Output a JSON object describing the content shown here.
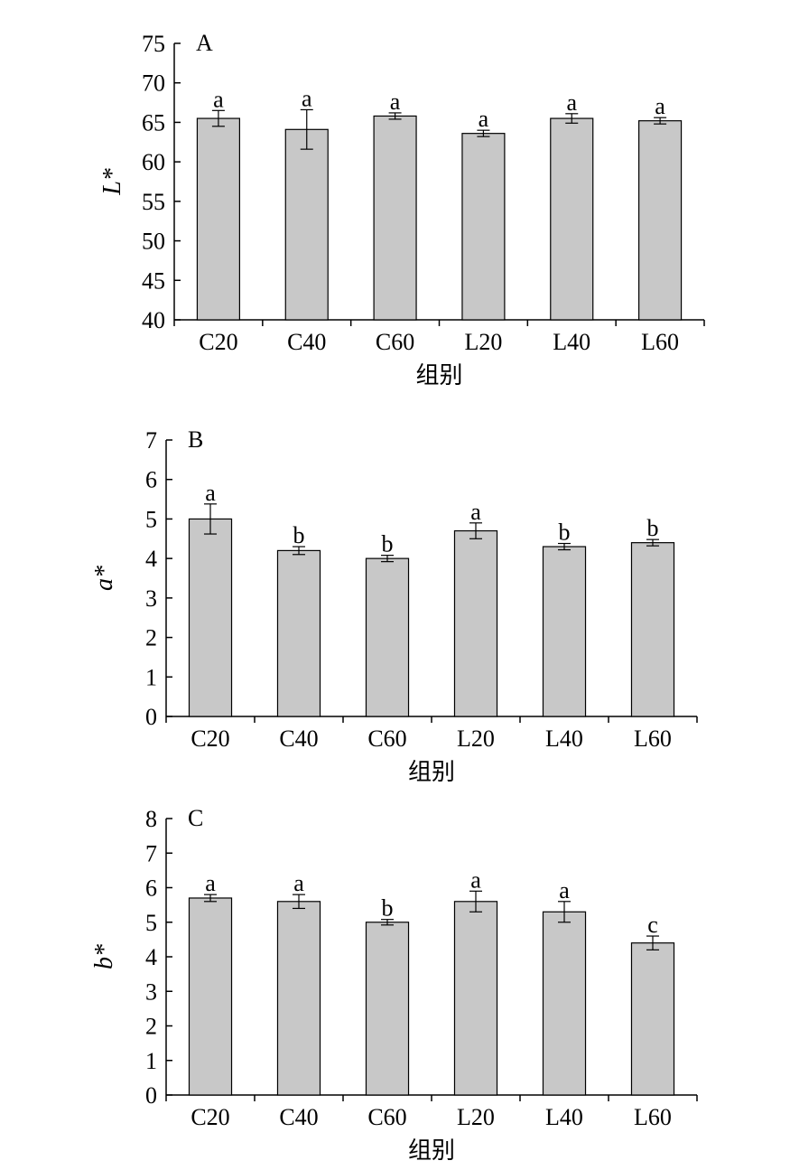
{
  "chart_data": [
    {
      "panel_label": "A",
      "type": "bar",
      "categories": [
        "C20",
        "C40",
        "C60",
        "L20",
        "L40",
        "L60"
      ],
      "values": [
        65.5,
        64.1,
        65.8,
        63.6,
        65.5,
        65.2
      ],
      "errors": [
        1.0,
        2.5,
        0.4,
        0.4,
        0.6,
        0.4
      ],
      "significance": [
        "a",
        "a",
        "a",
        "a",
        "a",
        "a"
      ],
      "ylabel": "L*",
      "xlabel": "组别",
      "ylim": [
        40,
        75
      ],
      "yticks": [
        40,
        45,
        50,
        55,
        60,
        65,
        70,
        75
      ],
      "bar_color": "#c8c8c8"
    },
    {
      "panel_label": "B",
      "type": "bar",
      "categories": [
        "C20",
        "C40",
        "C60",
        "L20",
        "L40",
        "L60"
      ],
      "values": [
        5.0,
        4.2,
        4.0,
        4.7,
        4.3,
        4.4
      ],
      "errors": [
        0.38,
        0.1,
        0.08,
        0.2,
        0.08,
        0.08
      ],
      "significance": [
        "a",
        "b",
        "b",
        "a",
        "b",
        "b"
      ],
      "ylabel": "a*",
      "xlabel": "组别",
      "ylim": [
        0,
        7
      ],
      "yticks": [
        0,
        1,
        2,
        3,
        4,
        5,
        6,
        7
      ],
      "bar_color": "#c8c8c8"
    },
    {
      "panel_label": "C",
      "type": "bar",
      "categories": [
        "C20",
        "C40",
        "C60",
        "L20",
        "L40",
        "L60"
      ],
      "values": [
        5.7,
        5.6,
        5.0,
        5.6,
        5.3,
        4.4
      ],
      "errors": [
        0.1,
        0.2,
        0.08,
        0.3,
        0.3,
        0.2
      ],
      "significance": [
        "a",
        "a",
        "b",
        "a",
        "a",
        "c"
      ],
      "ylabel": "b*",
      "xlabel": "组别",
      "ylim": [
        0,
        8
      ],
      "yticks": [
        0,
        1,
        2,
        3,
        4,
        5,
        6,
        7,
        8
      ],
      "bar_color": "#c8c8c8"
    }
  ]
}
